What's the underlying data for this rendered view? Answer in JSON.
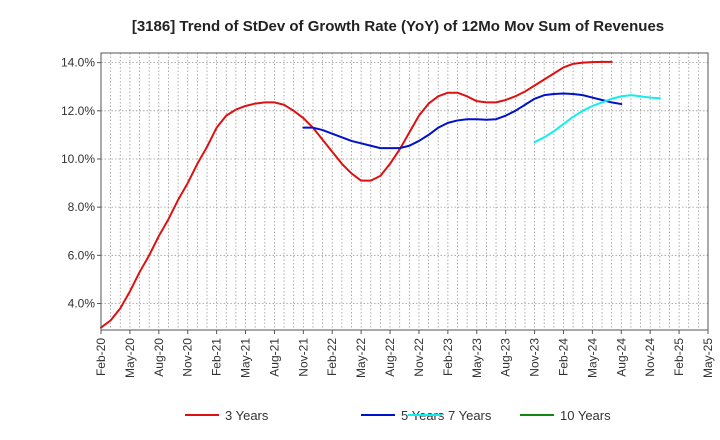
{
  "chart_data": {
    "type": "line",
    "title": "[3186]  Trend of StDev of Growth Rate (YoY) of 12Mo Mov Sum of Revenues",
    "xlabel": "",
    "ylabel": "",
    "ylim": [
      2.9,
      14.4
    ],
    "yticks": [
      4.0,
      6.0,
      8.0,
      10.0,
      12.0,
      14.0
    ],
    "ytick_labels": [
      "4.0%",
      "6.0%",
      "8.0%",
      "10.0%",
      "12.0%",
      "14.0%"
    ],
    "x_index_range": [
      0,
      63
    ],
    "x_ticks": [
      0,
      3,
      6,
      9,
      12,
      15,
      18,
      21,
      24,
      27,
      30,
      33,
      36,
      39,
      42,
      45,
      48,
      51,
      54,
      57,
      60,
      63
    ],
    "x_tick_labels": [
      "Feb-20",
      "May-20",
      "Aug-20",
      "Nov-20",
      "Feb-21",
      "May-21",
      "Aug-21",
      "Nov-21",
      "Feb-22",
      "May-22",
      "Aug-22",
      "Nov-22",
      "Feb-23",
      "May-23",
      "Aug-23",
      "Nov-23",
      "Feb-24",
      "May-24",
      "Aug-24",
      "Nov-24",
      "Feb-25",
      "May-25"
    ],
    "grid": true,
    "legend_position": "bottom",
    "series": [
      {
        "name": "3 Years",
        "color": "#dd1111",
        "start_index": 0,
        "values": [
          3.0,
          3.3,
          3.8,
          4.5,
          5.3,
          6.0,
          6.8,
          7.5,
          8.3,
          9.0,
          9.8,
          10.5,
          11.3,
          11.8,
          12.05,
          12.2,
          12.3,
          12.35,
          12.35,
          12.25,
          12.0,
          11.7,
          11.3,
          10.8,
          10.3,
          9.8,
          9.4,
          9.1,
          9.1,
          9.3,
          9.8,
          10.4,
          11.1,
          11.8,
          12.3,
          12.6,
          12.75,
          12.75,
          12.6,
          12.4,
          12.35,
          12.35,
          12.45,
          12.6,
          12.8,
          13.05,
          13.3,
          13.55,
          13.8,
          13.95,
          14.0,
          14.02,
          14.03,
          14.03
        ]
      },
      {
        "name": "5 Years",
        "color": "#0011cc",
        "start_index": 21,
        "values": [
          11.3,
          11.3,
          11.2,
          11.05,
          10.9,
          10.75,
          10.65,
          10.55,
          10.45,
          10.45,
          10.45,
          10.55,
          10.75,
          11.0,
          11.3,
          11.5,
          11.6,
          11.65,
          11.65,
          11.63,
          11.65,
          11.8,
          12.0,
          12.25,
          12.5,
          12.65,
          12.7,
          12.72,
          12.7,
          12.65,
          12.55,
          12.45,
          12.35,
          12.28
        ]
      },
      {
        "name": "7 Years",
        "color": "#11eeee",
        "start_index": 45,
        "values": [
          10.7,
          10.9,
          11.15,
          11.45,
          11.75,
          12.0,
          12.2,
          12.35,
          12.5,
          12.6,
          12.65,
          12.6,
          12.55,
          12.52
        ]
      },
      {
        "name": "10 Years",
        "color": "#118811",
        "start_index": 0,
        "values": []
      }
    ]
  }
}
